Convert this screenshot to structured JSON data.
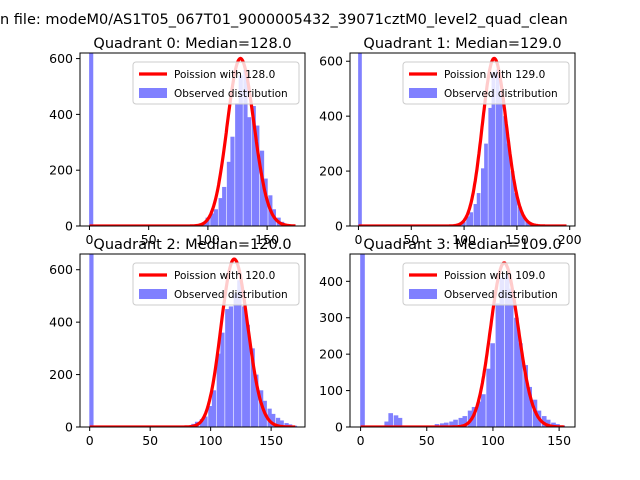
{
  "figure": {
    "suptitle": "n file: modeM0/AS1T05_067T01_9000005432_39071cztM0_level2_quad_clean"
  },
  "colors": {
    "observed": "#8080ff",
    "poisson": "#ff0000",
    "poisson_peak_highlight": "#ff8080",
    "legend_border": "#cccccc"
  },
  "chart_data": [
    {
      "type": "bar",
      "title": "Quadrant 0: Median=128.0",
      "median": 128.0,
      "xlabel": "",
      "ylabel": "",
      "xlim": [
        -8,
        182
      ],
      "ylim": [
        0,
        620
      ],
      "xticks": [
        0,
        50,
        100,
        150
      ],
      "yticks": [
        0,
        200,
        400,
        600
      ],
      "bin_width": 3.5,
      "spike": {
        "x": 0,
        "value": 620
      },
      "bars": [
        [
          91,
          3
        ],
        [
          95,
          10
        ],
        [
          98,
          30
        ],
        [
          102,
          45
        ],
        [
          105,
          60
        ],
        [
          109,
          100
        ],
        [
          112,
          140
        ],
        [
          116,
          230
        ],
        [
          119,
          320
        ],
        [
          123,
          440
        ],
        [
          126,
          540
        ],
        [
          130,
          560
        ],
        [
          133,
          390
        ],
        [
          137,
          430
        ],
        [
          140,
          360
        ],
        [
          144,
          270
        ],
        [
          147,
          170
        ],
        [
          151,
          110
        ],
        [
          154,
          60
        ],
        [
          158,
          30
        ],
        [
          161,
          15
        ],
        [
          165,
          7
        ],
        [
          168,
          3
        ]
      ],
      "poisson_mean": 128.0,
      "poisson_peak": 600,
      "legend": [
        {
          "label": "Poission with 128.0",
          "kind": "line"
        },
        {
          "label": "Observed distribution",
          "kind": "patch"
        }
      ]
    },
    {
      "type": "bar",
      "title": "Quadrant 1: Median=129.0",
      "median": 129.0,
      "xlabel": "",
      "ylabel": "",
      "xlim": [
        -8,
        205
      ],
      "ylim": [
        0,
        630
      ],
      "xticks": [
        0,
        50,
        100,
        150,
        200
      ],
      "yticks": [
        0,
        200,
        400,
        600
      ],
      "bin_width": 3.5,
      "spike": {
        "x": 0,
        "value": 630
      },
      "bars": [
        [
          95,
          5
        ],
        [
          98,
          15
        ],
        [
          102,
          35
        ],
        [
          105,
          50
        ],
        [
          109,
          80
        ],
        [
          112,
          120
        ],
        [
          116,
          210
        ],
        [
          119,
          300
        ],
        [
          123,
          430
        ],
        [
          126,
          560
        ],
        [
          130,
          570
        ],
        [
          133,
          490
        ],
        [
          137,
          400
        ],
        [
          140,
          300
        ],
        [
          144,
          200
        ],
        [
          147,
          120
        ],
        [
          151,
          70
        ],
        [
          154,
          40
        ],
        [
          158,
          20
        ],
        [
          161,
          10
        ],
        [
          165,
          5
        ]
      ],
      "poisson_mean": 129.0,
      "poisson_peak": 610,
      "legend": [
        {
          "label": "Poission with 129.0",
          "kind": "line"
        },
        {
          "label": "Observed distribution",
          "kind": "patch"
        }
      ]
    },
    {
      "type": "bar",
      "title": "Quadrant 2: Median=120.0",
      "median": 120.0,
      "xlabel": "",
      "ylabel": "",
      "xlim": [
        -8,
        178
      ],
      "ylim": [
        0,
        660
      ],
      "xticks": [
        0,
        50,
        100,
        150
      ],
      "yticks": [
        0,
        200,
        400,
        600
      ],
      "bin_width": 3.5,
      "spike": {
        "x": 0,
        "value": 660
      },
      "bars": [
        [
          80,
          5
        ],
        [
          84,
          12
        ],
        [
          87,
          20
        ],
        [
          91,
          30
        ],
        [
          94,
          40
        ],
        [
          98,
          80
        ],
        [
          101,
          140
        ],
        [
          105,
          280
        ],
        [
          108,
          360
        ],
        [
          112,
          450
        ],
        [
          115,
          460
        ],
        [
          119,
          510
        ],
        [
          122,
          560
        ],
        [
          126,
          460
        ],
        [
          129,
          390
        ],
        [
          133,
          300
        ],
        [
          136,
          200
        ],
        [
          140,
          140
        ],
        [
          143,
          100
        ],
        [
          147,
          70
        ],
        [
          150,
          50
        ],
        [
          154,
          35
        ],
        [
          157,
          25
        ],
        [
          161,
          15
        ],
        [
          164,
          10
        ],
        [
          168,
          5
        ]
      ],
      "poisson_mean": 120.0,
      "poisson_peak": 640,
      "legend": [
        {
          "label": "Poission with 120.0",
          "kind": "line"
        },
        {
          "label": "Observed distribution",
          "kind": "patch"
        }
      ]
    },
    {
      "type": "bar",
      "title": "Quadrant 3: Median=109.0",
      "median": 109.0,
      "xlabel": "",
      "ylabel": "",
      "xlim": [
        -8,
        162
      ],
      "ylim": [
        0,
        475
      ],
      "xticks": [
        0,
        50,
        100,
        150
      ],
      "yticks": [
        0,
        100,
        200,
        300,
        400
      ],
      "bin_width": 3.5,
      "spike": {
        "x": 0,
        "value": 475
      },
      "bars": [
        [
          18,
          15
        ],
        [
          21,
          38
        ],
        [
          25,
          32
        ],
        [
          28,
          25
        ],
        [
          56,
          8
        ],
        [
          60,
          10
        ],
        [
          63,
          12
        ],
        [
          67,
          15
        ],
        [
          70,
          20
        ],
        [
          74,
          25
        ],
        [
          77,
          30
        ],
        [
          81,
          45
        ],
        [
          84,
          55
        ],
        [
          88,
          70
        ],
        [
          91,
          90
        ],
        [
          95,
          160
        ],
        [
          98,
          230
        ],
        [
          102,
          340
        ],
        [
          105,
          410
        ],
        [
          109,
          420
        ],
        [
          112,
          380
        ],
        [
          116,
          300
        ],
        [
          119,
          230
        ],
        [
          123,
          170
        ],
        [
          126,
          110
        ],
        [
          130,
          75
        ],
        [
          133,
          45
        ],
        [
          137,
          30
        ],
        [
          140,
          20
        ],
        [
          144,
          12
        ],
        [
          147,
          8
        ],
        [
          151,
          4
        ]
      ],
      "poisson_mean": 109.0,
      "poisson_peak": 450,
      "legend": [
        {
          "label": "Poission with 109.0",
          "kind": "line"
        },
        {
          "label": "Observed distribution",
          "kind": "patch"
        }
      ]
    }
  ]
}
